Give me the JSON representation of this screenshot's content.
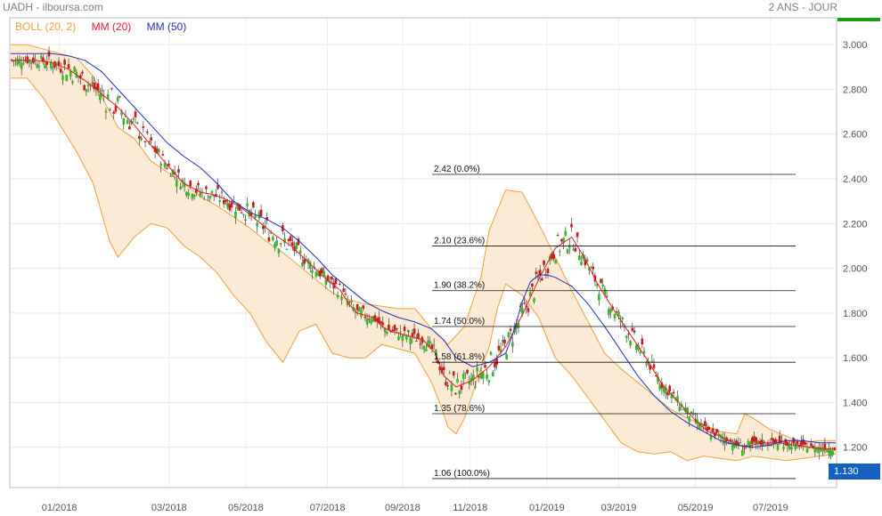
{
  "header": {
    "title": "UADH - ilboursa.com",
    "period": "2 ANS - JOUR",
    "price_tag": "1.130"
  },
  "legend": [
    {
      "label": "BOLL (20, 2)",
      "color": "#f0a040"
    },
    {
      "label": "MM (20)",
      "color": "#e02020"
    },
    {
      "label": "MM (50)",
      "color": "#2030c0"
    }
  ],
  "chart_data": {
    "type": "line",
    "title": "",
    "ylim": [
      1.02,
      3.12
    ],
    "grid": true,
    "y_ticks": [
      "3.000",
      "2.800",
      "2.600",
      "2.400",
      "2.200",
      "2.000",
      "1.800",
      "1.600",
      "1.400",
      "1.200"
    ],
    "x_ticks": [
      "01/2018",
      "03/2018",
      "05/2018",
      "07/2018",
      "09/2018",
      "11/2018",
      "01/2019",
      "03/2019",
      "05/2019",
      "07/2019"
    ],
    "fibonacci": [
      {
        "value": 2.42,
        "label": "2.42 (0.0%)"
      },
      {
        "value": 2.1,
        "label": "2.10 (23.6%)"
      },
      {
        "value": 1.9,
        "label": "1.90 (38.2%)"
      },
      {
        "value": 1.74,
        "label": "1.74 (50.0%)"
      },
      {
        "value": 1.58,
        "label": "1.58 (61.8%)"
      },
      {
        "value": 1.35,
        "label": "1.35 (78.6%)"
      },
      {
        "value": 1.06,
        "label": "1.06 (100.0%)"
      }
    ],
    "series": [
      {
        "name": "MM (20)",
        "x": [
          0,
          3,
          5,
          7,
          9,
          11,
          13,
          15,
          17,
          19,
          21,
          23,
          24.5,
          26,
          28,
          30,
          32,
          34,
          36,
          38,
          40,
          41,
          42,
          43,
          44,
          45,
          46,
          47,
          48,
          49,
          50,
          51.5,
          52.5,
          54,
          56,
          58,
          60,
          62,
          64,
          66,
          68,
          69.5,
          71,
          73,
          75,
          77,
          79,
          81,
          83,
          84.5,
          86,
          87.5,
          89,
          91,
          93,
          95,
          97,
          100
        ],
        "values": [
          2.93,
          2.93,
          2.92,
          2.89,
          2.84,
          2.78,
          2.72,
          2.64,
          2.55,
          2.46,
          2.38,
          2.34,
          2.33,
          2.31,
          2.27,
          2.21,
          2.15,
          2.1,
          2.03,
          1.96,
          1.9,
          1.84,
          1.8,
          1.79,
          1.78,
          1.74,
          1.72,
          1.71,
          1.7,
          1.69,
          1.68,
          1.62,
          1.52,
          1.47,
          1.5,
          1.56,
          1.65,
          1.79,
          1.95,
          2.09,
          2.14,
          2.05,
          1.94,
          1.82,
          1.71,
          1.6,
          1.48,
          1.4,
          1.32,
          1.27,
          1.25,
          1.22,
          1.2,
          1.22,
          1.22,
          1.21,
          1.2,
          1.19
        ]
      },
      {
        "name": "MM (50)",
        "x": [
          0,
          3,
          5,
          7,
          9,
          11,
          13,
          15,
          17,
          19,
          21,
          23,
          25,
          27,
          29,
          31,
          33,
          35,
          37,
          39,
          41,
          43,
          45,
          47,
          49,
          51,
          52.5,
          54,
          56,
          58,
          60,
          61,
          62,
          63,
          64,
          65,
          66,
          67,
          68,
          70,
          72,
          74,
          76,
          78,
          80,
          82,
          84,
          86,
          88,
          90,
          92,
          94,
          96,
          98,
          100
        ],
        "values": [
          2.96,
          2.96,
          2.96,
          2.95,
          2.93,
          2.88,
          2.8,
          2.72,
          2.64,
          2.56,
          2.5,
          2.45,
          2.38,
          2.3,
          2.25,
          2.22,
          2.18,
          2.12,
          2.05,
          1.97,
          1.91,
          1.85,
          1.81,
          1.78,
          1.76,
          1.73,
          1.68,
          1.6,
          1.56,
          1.58,
          1.62,
          1.72,
          1.85,
          1.94,
          1.97,
          1.97,
          1.96,
          1.94,
          1.92,
          1.84,
          1.74,
          1.63,
          1.52,
          1.43,
          1.36,
          1.31,
          1.27,
          1.23,
          1.21,
          1.2,
          1.21,
          1.23,
          1.23,
          1.22,
          1.22
        ]
      },
      {
        "name": "BOLL upper",
        "x": [
          0,
          2,
          4,
          6,
          8,
          10,
          11,
          13,
          15,
          17,
          19,
          21,
          23,
          25,
          27,
          29,
          31,
          33,
          35,
          37,
          39,
          41,
          43,
          45,
          47,
          49,
          51,
          53,
          55,
          57,
          58,
          60,
          62,
          64,
          66,
          68,
          70,
          72,
          74,
          76,
          78,
          80,
          82,
          84,
          86,
          88,
          89,
          90,
          92,
          94,
          96,
          98,
          100
        ],
        "values": [
          3.0,
          3.0,
          2.98,
          2.96,
          2.94,
          2.86,
          2.77,
          2.63,
          2.58,
          2.48,
          2.43,
          2.38,
          2.32,
          2.28,
          2.23,
          2.18,
          2.12,
          2.07,
          2.01,
          1.95,
          1.89,
          1.86,
          1.84,
          1.83,
          1.82,
          1.82,
          1.73,
          1.66,
          1.74,
          1.96,
          2.17,
          2.35,
          2.34,
          2.2,
          2.05,
          1.9,
          1.76,
          1.62,
          1.55,
          1.49,
          1.43,
          1.37,
          1.33,
          1.3,
          1.27,
          1.26,
          1.35,
          1.33,
          1.28,
          1.25,
          1.22,
          1.23,
          1.23
        ]
      },
      {
        "name": "BOLL lower",
        "x": [
          0,
          2,
          4,
          6,
          8,
          10,
          12,
          13,
          15,
          17,
          19,
          21,
          23,
          25,
          27,
          29,
          31,
          33,
          35,
          37,
          39,
          41,
          43,
          45,
          47,
          49,
          51,
          52,
          53,
          54,
          55,
          57,
          58,
          59,
          60,
          62,
          64,
          66,
          68,
          70,
          72,
          74,
          76,
          78,
          80,
          82,
          84,
          86,
          88,
          90,
          92,
          94,
          96,
          98,
          100
        ],
        "values": [
          2.85,
          2.85,
          2.76,
          2.64,
          2.52,
          2.38,
          2.12,
          2.05,
          2.14,
          2.2,
          2.18,
          2.1,
          2.05,
          1.98,
          1.88,
          1.8,
          1.67,
          1.58,
          1.72,
          1.75,
          1.62,
          1.6,
          1.6,
          1.66,
          1.64,
          1.62,
          1.49,
          1.4,
          1.29,
          1.26,
          1.33,
          1.55,
          1.65,
          1.82,
          1.93,
          1.88,
          1.78,
          1.6,
          1.52,
          1.42,
          1.32,
          1.22,
          1.18,
          1.17,
          1.18,
          1.14,
          1.16,
          1.15,
          1.14,
          1.16,
          1.15,
          1.14,
          1.15,
          1.16,
          1.17
        ]
      }
    ],
    "last_price": 1.13
  }
}
